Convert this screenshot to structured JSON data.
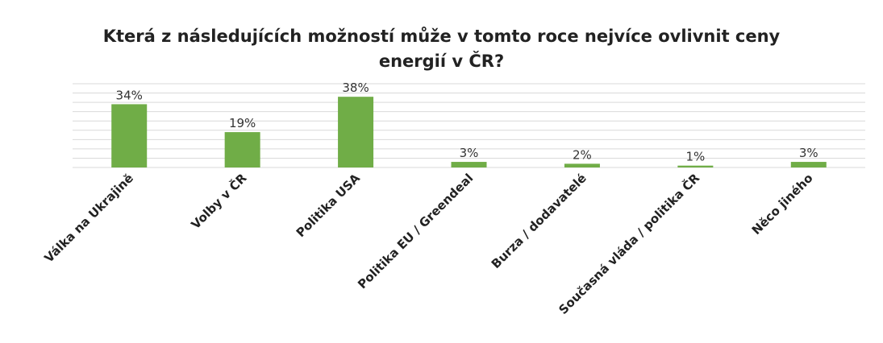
{
  "chart_data": {
    "type": "bar",
    "title_lines": [
      "Která z následujících možností může v tomto roce nejvíce ovlivnit ceny",
      "energií v ČR?"
    ],
    "categories": [
      "Válka na Ukrajině",
      "Volby v ČR",
      "Politika USA",
      "Politika EU / Greendeal",
      "Burza / dodavatelé",
      "Současná vláda / politika ČR",
      "Něco jiného"
    ],
    "values": [
      34,
      19,
      38,
      3,
      2,
      1,
      3
    ],
    "value_labels": [
      "34%",
      "19%",
      "38%",
      "3%",
      "2%",
      "1%",
      "3%"
    ],
    "ylim": [
      0,
      45
    ],
    "grid": true,
    "bar_color": "#70ad47"
  }
}
